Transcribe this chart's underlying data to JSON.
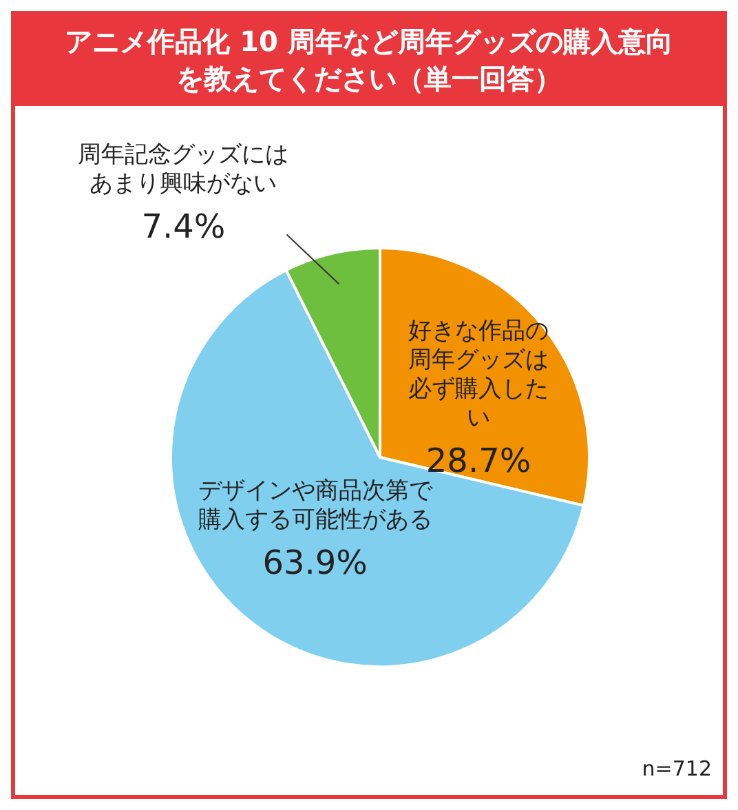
{
  "chart_data": {
    "type": "pie",
    "title": "アニメ作品化 10 周年など周年グッズの購入意向を教えてください（単一回答）",
    "categories": [
      "好きな作品の周年グッズは必ず購入したい",
      "デザインや商品次第で購入する可能性がある",
      "周年記念グッズにはあまり興味がない"
    ],
    "values": [
      28.7,
      63.9,
      7.4
    ],
    "colors": [
      "#f39200",
      "#80cfee",
      "#6fbf3f"
    ],
    "value_labels": [
      "28.7%",
      "63.9%",
      "7.4%"
    ],
    "annotations": [
      "n=712"
    ],
    "legend": false
  }
}
